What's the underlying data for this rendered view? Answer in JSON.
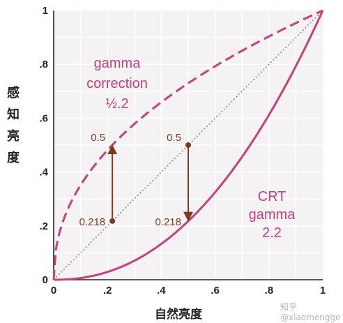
{
  "chart_data": {
    "type": "line",
    "xlabel": "自然亮度",
    "ylabel": "感知亮度",
    "xlim": [
      0,
      1
    ],
    "ylim": [
      0,
      1
    ],
    "grid": true,
    "x_ticks": [
      "0",
      ".2",
      ".4",
      ".6",
      ".8",
      "1"
    ],
    "y_ticks": [
      "0",
      ".2",
      ".4",
      ".6",
      ".8",
      "1"
    ],
    "series": [
      {
        "name": "gamma correction 1/2.2",
        "gamma": 0.4545,
        "style": "dashed",
        "color": "#c8407a"
      },
      {
        "name": "linear reference",
        "gamma": 1.0,
        "style": "dotted",
        "color": "#8a8a8a"
      },
      {
        "name": "CRT gamma 2.2",
        "gamma": 2.2,
        "style": "solid",
        "color": "#c8407a"
      }
    ],
    "annotations": {
      "gamma_correction_label": [
        "gamma",
        "correction",
        "½.2"
      ],
      "crt_label": [
        "CRT",
        "gamma",
        "2.2"
      ],
      "left_arrow": {
        "x": 0.218,
        "y_from": 0.218,
        "y_to": 0.5,
        "label_from": "0.218",
        "label_to": "0.5"
      },
      "right_arrow": {
        "x": 0.5,
        "y_from": 0.5,
        "y_to": 0.218,
        "label_from": "0.5",
        "label_to": "0.218"
      }
    },
    "arrow_color": "#7a3b1e",
    "label_color": "#c8407a",
    "value_label_color": "#7a3b1e"
  },
  "watermark": "知乎 @xiaomengge"
}
